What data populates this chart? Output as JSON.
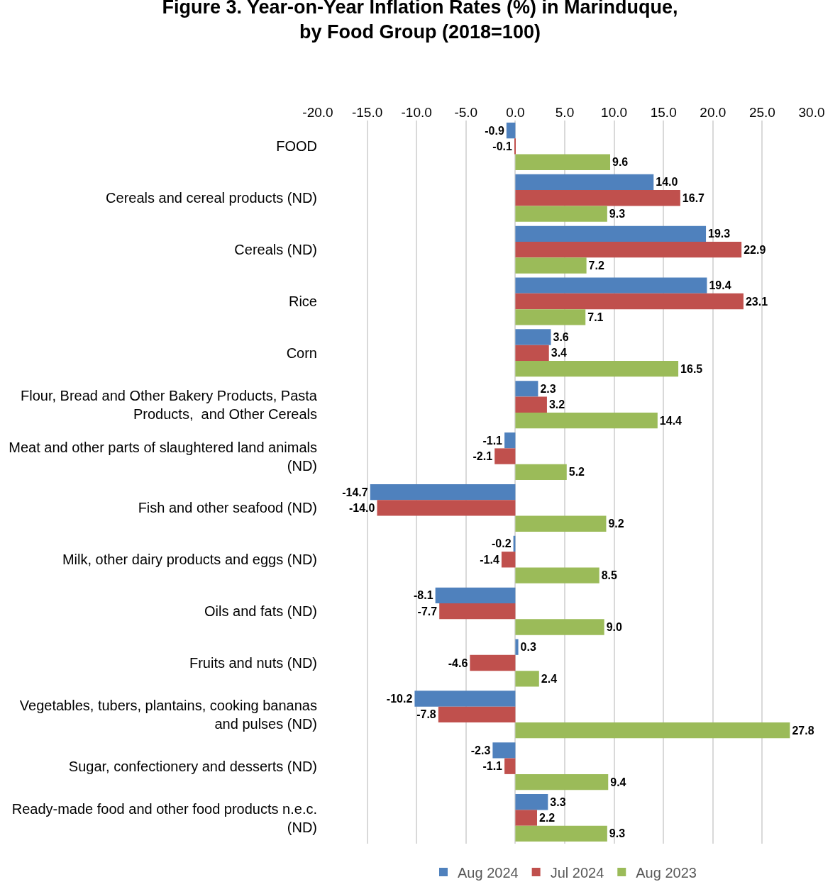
{
  "chart_data": {
    "type": "bar",
    "orientation": "horizontal",
    "title": "Figure 3. Year-on-Year Inflation Rates (%) in Marinduque,\nby Food Group (2018=100)",
    "categories": [
      "FOOD",
      "Cereals and cereal products (ND)",
      "Cereals (ND)",
      "Rice",
      "Corn",
      "Flour, Bread and Other Bakery Products, Pasta Products,  and Other Cereals",
      "Meat and other parts of slaughtered land animals (ND)",
      "Fish and other seafood (ND)",
      "Milk, other dairy products and eggs (ND)",
      "Oils and fats (ND)",
      "Fruits and nuts (ND)",
      "Vegetables, tubers, plantains, cooking bananas and pulses (ND)",
      "Sugar, confectionery and desserts (ND)",
      "Ready-made food and other food products n.e.c. (ND)"
    ],
    "series": [
      {
        "name": "Aug 2024",
        "color": "#4f81bd",
        "values": [
          -0.9,
          14.0,
          19.3,
          19.4,
          3.6,
          2.3,
          -1.1,
          -14.7,
          -0.2,
          -8.1,
          0.3,
          -10.2,
          -2.3,
          3.3
        ],
        "value_labels": [
          "-0.9",
          "14.0",
          "19.3",
          "19.4",
          "3.6",
          "2.3",
          "-1.1",
          "-14.7",
          "-0.2",
          "-8.1",
          "0.3",
          "-10.2",
          "-2.3",
          "3.3"
        ]
      },
      {
        "name": "Jul 2024",
        "color": "#c0504d",
        "values": [
          -0.1,
          16.7,
          22.9,
          23.1,
          3.4,
          3.2,
          -2.1,
          -14.0,
          -1.4,
          -7.7,
          -4.6,
          -7.8,
          -1.1,
          2.2
        ],
        "value_labels": [
          "-0.1",
          "16.7",
          "22.9",
          "23.1",
          "3.4",
          "3.2",
          "-2.1",
          "-14.0",
          "-1.4",
          "-7.7",
          "-4.6",
          "-7.8",
          "-1.1",
          "2.2"
        ]
      },
      {
        "name": "Aug 2023",
        "color": "#9bbb59",
        "values": [
          9.6,
          9.3,
          7.2,
          7.1,
          16.5,
          14.4,
          5.2,
          9.2,
          8.5,
          9.0,
          2.4,
          27.8,
          9.4,
          9.3
        ],
        "value_labels": [
          "9.6",
          "9.3",
          "7.2",
          "7.1",
          "16.5",
          "14.4",
          "5.2",
          "9.2",
          "8.5",
          "9.0",
          "2.4",
          "27.8",
          "9.4",
          "9.3"
        ]
      }
    ],
    "xlim": [
      -20,
      30
    ],
    "xticks": [
      {
        "value": -20,
        "label": "-20.0"
      },
      {
        "value": -15,
        "label": "-15.0"
      },
      {
        "value": -10,
        "label": "-10.0"
      },
      {
        "value": -5,
        "label": "-5.0"
      },
      {
        "value": 0,
        "label": "0.0"
      },
      {
        "value": 5,
        "label": "5.0"
      },
      {
        "value": 10,
        "label": "10.0"
      },
      {
        "value": 15,
        "label": "15.0"
      },
      {
        "value": 20,
        "label": "20.0"
      },
      {
        "value": 25,
        "label": "25.0"
      },
      {
        "value": 30,
        "label": "30.0"
      }
    ],
    "grid": "x",
    "legend": "bottom"
  }
}
